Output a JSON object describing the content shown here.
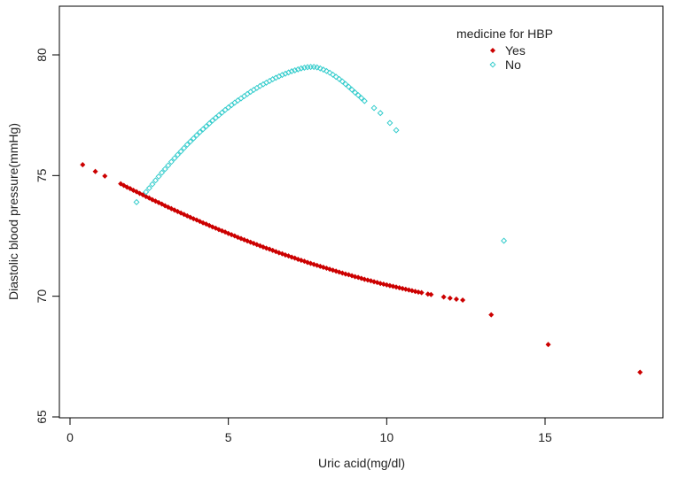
{
  "chart_data": {
    "type": "scatter",
    "title": "",
    "xlabel": "Uric acid(mg/dl)",
    "ylabel": "Diastolic blood pressure(mmHg)",
    "xlim": [
      -0.3,
      18.4
    ],
    "ylim": [
      64.7,
      81.6
    ],
    "xticks": [
      0,
      5,
      10,
      15
    ],
    "yticks": [
      65,
      70,
      75,
      80
    ],
    "grid": false,
    "legend": {
      "title": "medicine for HBP",
      "position": "top-right"
    },
    "series": [
      {
        "name": "Yes",
        "marker": "filled-diamond",
        "color": "#cc0000",
        "points": [
          [
            0.4,
            75.45
          ],
          [
            0.8,
            75.17
          ],
          [
            1.1,
            74.98
          ],
          [
            1.6,
            74.66
          ],
          [
            1.7,
            74.59
          ],
          [
            1.8,
            74.52
          ],
          [
            1.9,
            74.46
          ],
          [
            2.0,
            74.39
          ],
          [
            2.1,
            74.33
          ],
          [
            2.2,
            74.26
          ],
          [
            2.3,
            74.2
          ],
          [
            2.4,
            74.13
          ],
          [
            2.5,
            74.07
          ],
          [
            2.6,
            74.0
          ],
          [
            2.7,
            73.94
          ],
          [
            2.8,
            73.88
          ],
          [
            2.9,
            73.82
          ],
          [
            3.0,
            73.75
          ],
          [
            3.1,
            73.69
          ],
          [
            3.2,
            73.63
          ],
          [
            3.3,
            73.57
          ],
          [
            3.4,
            73.51
          ],
          [
            3.5,
            73.45
          ],
          [
            3.6,
            73.39
          ],
          [
            3.7,
            73.33
          ],
          [
            3.8,
            73.27
          ],
          [
            3.9,
            73.21
          ],
          [
            4.0,
            73.16
          ],
          [
            4.1,
            73.1
          ],
          [
            4.2,
            73.04
          ],
          [
            4.3,
            72.99
          ],
          [
            4.4,
            72.93
          ],
          [
            4.5,
            72.87
          ],
          [
            4.6,
            72.82
          ],
          [
            4.7,
            72.76
          ],
          [
            4.8,
            72.71
          ],
          [
            4.9,
            72.66
          ],
          [
            5.0,
            72.6
          ],
          [
            5.1,
            72.55
          ],
          [
            5.2,
            72.5
          ],
          [
            5.3,
            72.44
          ],
          [
            5.4,
            72.39
          ],
          [
            5.5,
            72.34
          ],
          [
            5.6,
            72.29
          ],
          [
            5.7,
            72.24
          ],
          [
            5.8,
            72.19
          ],
          [
            5.9,
            72.14
          ],
          [
            6.0,
            72.09
          ],
          [
            6.1,
            72.04
          ],
          [
            6.2,
            71.99
          ],
          [
            6.3,
            71.95
          ],
          [
            6.4,
            71.9
          ],
          [
            6.5,
            71.85
          ],
          [
            6.6,
            71.8
          ],
          [
            6.7,
            71.76
          ],
          [
            6.8,
            71.71
          ],
          [
            6.9,
            71.67
          ],
          [
            7.0,
            71.62
          ],
          [
            7.1,
            71.58
          ],
          [
            7.2,
            71.53
          ],
          [
            7.3,
            71.49
          ],
          [
            7.4,
            71.45
          ],
          [
            7.5,
            71.4
          ],
          [
            7.6,
            71.36
          ],
          [
            7.7,
            71.32
          ],
          [
            7.8,
            71.28
          ],
          [
            7.9,
            71.24
          ],
          [
            8.0,
            71.2
          ],
          [
            8.1,
            71.16
          ],
          [
            8.2,
            71.12
          ],
          [
            8.3,
            71.08
          ],
          [
            8.4,
            71.04
          ],
          [
            8.5,
            71.0
          ],
          [
            8.6,
            70.96
          ],
          [
            8.7,
            70.92
          ],
          [
            8.8,
            70.89
          ],
          [
            8.9,
            70.85
          ],
          [
            9.0,
            70.81
          ],
          [
            9.1,
            70.78
          ],
          [
            9.2,
            70.74
          ],
          [
            9.3,
            70.7
          ],
          [
            9.4,
            70.67
          ],
          [
            9.5,
            70.64
          ],
          [
            9.6,
            70.6
          ],
          [
            9.7,
            70.57
          ],
          [
            9.8,
            70.53
          ],
          [
            9.9,
            70.5
          ],
          [
            10.0,
            70.47
          ],
          [
            10.1,
            70.44
          ],
          [
            10.2,
            70.41
          ],
          [
            10.3,
            70.38
          ],
          [
            10.4,
            70.35
          ],
          [
            10.5,
            70.32
          ],
          [
            10.6,
            70.29
          ],
          [
            10.7,
            70.26
          ],
          [
            10.8,
            70.23
          ],
          [
            10.9,
            70.2
          ],
          [
            11.0,
            70.17
          ],
          [
            11.1,
            70.15
          ],
          [
            11.3,
            70.09
          ],
          [
            11.4,
            70.07
          ],
          [
            11.8,
            69.97
          ],
          [
            12.0,
            69.92
          ],
          [
            12.2,
            69.88
          ],
          [
            12.4,
            69.84
          ],
          [
            13.3,
            69.23
          ],
          [
            15.1,
            68.0
          ],
          [
            18.0,
            66.85
          ]
        ]
      },
      {
        "name": "No",
        "marker": "open-diamond",
        "color": "#33cccc",
        "points": [
          [
            2.1,
            73.9
          ],
          [
            2.4,
            74.32
          ],
          [
            2.5,
            74.48
          ],
          [
            2.6,
            74.64
          ],
          [
            2.7,
            74.8
          ],
          [
            2.8,
            74.96
          ],
          [
            2.9,
            75.12
          ],
          [
            3.0,
            75.27
          ],
          [
            3.1,
            75.42
          ],
          [
            3.2,
            75.57
          ],
          [
            3.3,
            75.72
          ],
          [
            3.4,
            75.86
          ],
          [
            3.5,
            76.0
          ],
          [
            3.6,
            76.14
          ],
          [
            3.7,
            76.28
          ],
          [
            3.8,
            76.41
          ],
          [
            3.9,
            76.54
          ],
          [
            4.0,
            76.67
          ],
          [
            4.1,
            76.8
          ],
          [
            4.2,
            76.92
          ],
          [
            4.3,
            77.04
          ],
          [
            4.4,
            77.16
          ],
          [
            4.5,
            77.28
          ],
          [
            4.6,
            77.39
          ],
          [
            4.7,
            77.5
          ],
          [
            4.8,
            77.61
          ],
          [
            4.9,
            77.72
          ],
          [
            5.0,
            77.82
          ],
          [
            5.1,
            77.92
          ],
          [
            5.2,
            78.02
          ],
          [
            5.3,
            78.11
          ],
          [
            5.4,
            78.2
          ],
          [
            5.5,
            78.29
          ],
          [
            5.6,
            78.38
          ],
          [
            5.7,
            78.47
          ],
          [
            5.8,
            78.55
          ],
          [
            5.9,
            78.63
          ],
          [
            6.0,
            78.71
          ],
          [
            6.1,
            78.78
          ],
          [
            6.2,
            78.85
          ],
          [
            6.3,
            78.92
          ],
          [
            6.4,
            78.99
          ],
          [
            6.5,
            79.05
          ],
          [
            6.6,
            79.11
          ],
          [
            6.7,
            79.17
          ],
          [
            6.8,
            79.22
          ],
          [
            6.9,
            79.27
          ],
          [
            7.0,
            79.32
          ],
          [
            7.1,
            79.36
          ],
          [
            7.2,
            79.4
          ],
          [
            7.3,
            79.44
          ],
          [
            7.4,
            79.47
          ],
          [
            7.5,
            79.49
          ],
          [
            7.6,
            79.5
          ],
          [
            7.7,
            79.5
          ],
          [
            7.8,
            79.48
          ],
          [
            7.9,
            79.44
          ],
          [
            8.0,
            79.39
          ],
          [
            8.1,
            79.33
          ],
          [
            8.2,
            79.26
          ],
          [
            8.3,
            79.18
          ],
          [
            8.4,
            79.09
          ],
          [
            8.5,
            79.0
          ],
          [
            8.6,
            78.9
          ],
          [
            8.7,
            78.79
          ],
          [
            8.8,
            78.68
          ],
          [
            8.9,
            78.56
          ],
          [
            9.0,
            78.44
          ],
          [
            9.1,
            78.33
          ],
          [
            9.2,
            78.21
          ],
          [
            9.3,
            78.09
          ],
          [
            9.6,
            77.8
          ],
          [
            9.8,
            77.59
          ],
          [
            10.1,
            77.18
          ],
          [
            10.3,
            76.88
          ],
          [
            13.7,
            72.3
          ]
        ]
      }
    ]
  }
}
